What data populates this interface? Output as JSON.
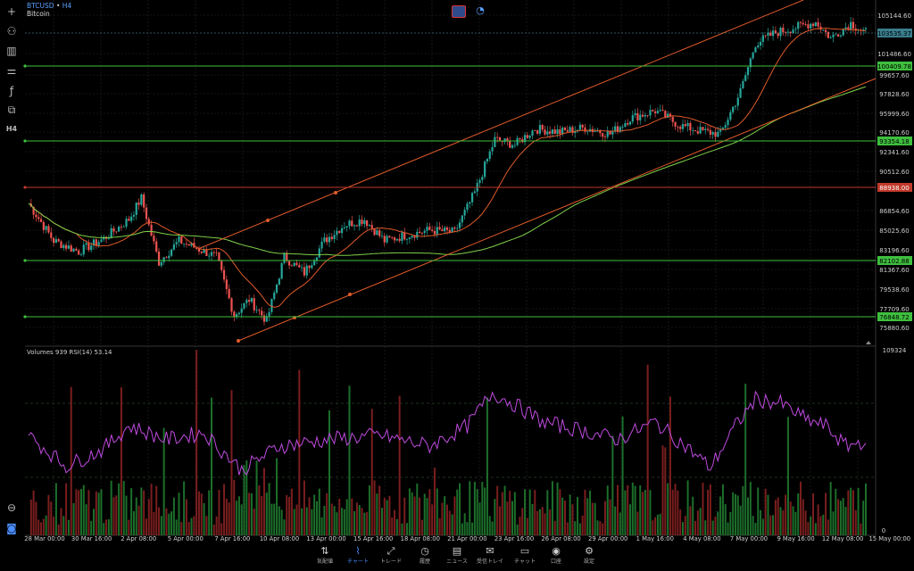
{
  "header": {
    "symbol": "BTCUSD",
    "timeframe": "H4",
    "name": "Bitcoin"
  },
  "indicator_label": "Volumes 939 RSI(14) 53.14",
  "price_axis": {
    "ticks": [
      "105144.60",
      "101486.60",
      "99657.60",
      "97828.60",
      "95999.60",
      "94170.60",
      "92341.60",
      "90512.60",
      "86854.60",
      "85025.60",
      "83196.60",
      "81367.60",
      "79538.60",
      "77709.60",
      "75880.60"
    ],
    "rsi_top": "109324",
    "rsi_bottom": "0"
  },
  "level_tags": [
    {
      "label": "103535.37",
      "color": "#3a7d8c"
    },
    {
      "label": "100409.78",
      "color": "#3fbf3f"
    },
    {
      "label": "93354.18",
      "color": "#3fbf3f"
    },
    {
      "label": "88938.00",
      "color": "#c0392b"
    },
    {
      "label": "82102.88",
      "color": "#3fbf3f"
    },
    {
      "label": "76848.72",
      "color": "#3fbf3f"
    }
  ],
  "time_axis": [
    "28 Mar 00:00",
    "30 Mar 16:00",
    "2 Apr 08:00",
    "5 Apr 00:00",
    "7 Apr 16:00",
    "10 Apr 08:00",
    "13 Apr 00:00",
    "15 Apr 16:00",
    "18 Apr 08:00",
    "21 Apr 00:00",
    "23 Apr 16:00",
    "26 Apr 08:00",
    "29 Apr 00:00",
    "1 May 16:00",
    "4 May 08:00",
    "7 May 00:00",
    "9 May 16:00",
    "12 May 08:00",
    "15 May 00:00"
  ],
  "nav": [
    {
      "label": "気配値",
      "icon": "⇅",
      "name": "nav-quotes",
      "active": false
    },
    {
      "label": "チャート",
      "icon": "⌇",
      "name": "nav-chart",
      "active": true
    },
    {
      "label": "トレード",
      "icon": "⤢",
      "name": "nav-trade",
      "active": false
    },
    {
      "label": "履歴",
      "icon": "◷",
      "name": "nav-history",
      "active": false
    },
    {
      "label": "ニュース",
      "icon": "▤",
      "name": "nav-news",
      "active": false
    },
    {
      "label": "受信トレイ",
      "icon": "✉",
      "name": "nav-inbox",
      "active": false
    },
    {
      "label": "チャット",
      "icon": "▭",
      "name": "nav-chat",
      "active": false
    },
    {
      "label": "口座",
      "icon": "◉",
      "name": "nav-account",
      "active": false
    },
    {
      "label": "設定",
      "icon": "⚙",
      "name": "nav-settings",
      "active": false
    }
  ],
  "toolbar": [
    {
      "name": "crosshair-icon",
      "glyph": "+"
    },
    {
      "name": "indicators-icon",
      "glyph": "⚇"
    },
    {
      "name": "bar-chart-icon",
      "glyph": "▥"
    },
    {
      "name": "drawing-tools-icon",
      "glyph": "⚌"
    },
    {
      "name": "function-icon",
      "glyph": "ƒ"
    },
    {
      "name": "objects-icon",
      "glyph": "⧉"
    },
    {
      "name": "timeframe-icon",
      "glyph": "H4"
    }
  ],
  "colors": {
    "up": "#26a69a",
    "down": "#ef5350",
    "rsi": "#c04be0",
    "ma_fast": "#e05a2a",
    "ma_slow": "#7fd14a",
    "grid": "#262626"
  }
}
